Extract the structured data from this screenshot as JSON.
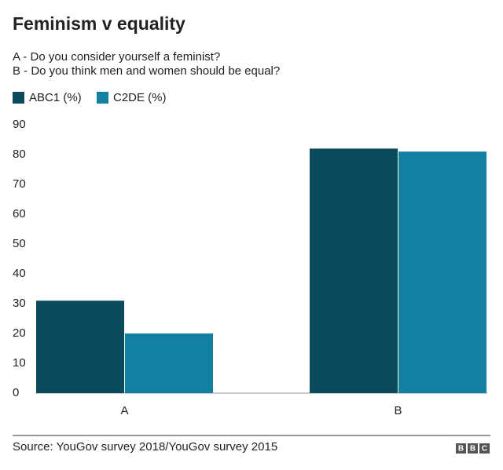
{
  "chart_data": {
    "type": "bar",
    "title": "Feminism v equality",
    "subtitle": [
      "A - Do you consider yourself a feminist?",
      "B - Do you think men and women should be equal?"
    ],
    "categories": [
      "A",
      "B"
    ],
    "series": [
      {
        "name": "ABC1 (%)",
        "color": "#0b4a5a",
        "values": [
          31,
          82
        ]
      },
      {
        "name": "C2DE (%)",
        "color": "#1380a1",
        "values": [
          20,
          81
        ]
      }
    ],
    "ylim": [
      0,
      90
    ],
    "yticks": [
      0,
      10,
      20,
      30,
      40,
      50,
      60,
      70,
      80,
      90
    ],
    "grid": false,
    "source": "Source: YouGov survey 2018/YouGov survey 2015",
    "logo": [
      "B",
      "B",
      "C"
    ]
  }
}
